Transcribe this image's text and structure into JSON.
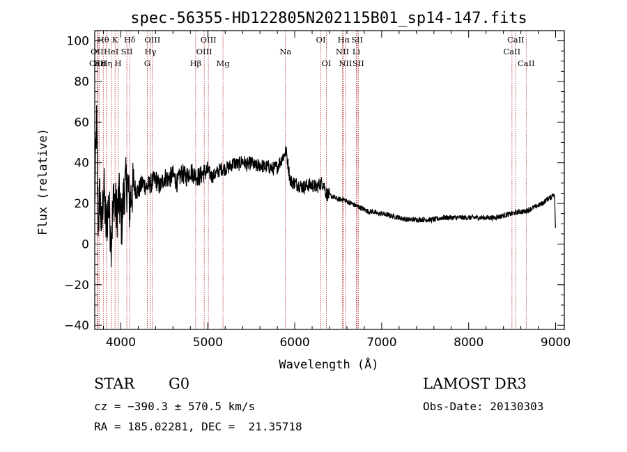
{
  "chart_data": {
    "type": "line",
    "title": "spec-56355-HD122805N202115B01_sp14-147.fits",
    "xlabel": "Wavelength (Å)",
    "ylabel": "Flux (relative)",
    "xlim": [
      3700,
      9100
    ],
    "ylim": [
      -42,
      105
    ],
    "xticks": [
      4000,
      5000,
      6000,
      7000,
      8000,
      9000
    ],
    "xtick_labels": [
      "4000",
      "5000",
      "6000",
      "7000",
      "8000",
      "9000"
    ],
    "yticks": [
      -40,
      -20,
      0,
      20,
      40,
      60,
      80,
      100
    ],
    "ytick_labels": [
      "−40",
      "−20",
      "0",
      "20",
      "40",
      "60",
      "80",
      "100"
    ],
    "grid": false,
    "series": [
      {
        "name": "spectrum",
        "x": [
          3700,
          3720,
          3740,
          3760,
          3780,
          3800,
          3830,
          3860,
          3890,
          3920,
          3950,
          3980,
          4010,
          4040,
          4080,
          4100,
          4120,
          4150,
          4200,
          4250,
          4300,
          4350,
          4400,
          4450,
          4500,
          4550,
          4600,
          4650,
          4700,
          4750,
          4800,
          4850,
          4900,
          4950,
          5000,
          5050,
          5100,
          5150,
          5200,
          5250,
          5300,
          5350,
          5400,
          5450,
          5500,
          5550,
          5600,
          5650,
          5700,
          5750,
          5800,
          5850,
          5880,
          5900,
          5920,
          5950,
          6000,
          6050,
          6100,
          6150,
          6200,
          6250,
          6300,
          6330,
          6360,
          6400,
          6450,
          6500,
          6550,
          6600,
          6650,
          6700,
          6750,
          6800,
          6850,
          6900,
          6950,
          7000,
          7100,
          7200,
          7300,
          7400,
          7500,
          7600,
          7700,
          7800,
          7900,
          8000,
          8100,
          8200,
          8300,
          8400,
          8500,
          8600,
          8650,
          8700,
          8750,
          8800,
          8850,
          8900,
          8950,
          8970,
          8990,
          9000
        ],
        "y": [
          20,
          60,
          10,
          25,
          5,
          30,
          8,
          20,
          2,
          25,
          15,
          22,
          10,
          28,
          30,
          18,
          25,
          28,
          26,
          30,
          28,
          30,
          32,
          28,
          33,
          32,
          34,
          30,
          35,
          33,
          36,
          34,
          33,
          35,
          36,
          33,
          35,
          37,
          37,
          38,
          40,
          39,
          41,
          39,
          40,
          38,
          39,
          38,
          38,
          37,
          38,
          42,
          44,
          46,
          40,
          31,
          30,
          29,
          28,
          29,
          29,
          28,
          30,
          30,
          25,
          24,
          23,
          22,
          22,
          21,
          20,
          19,
          18,
          17,
          16,
          16,
          15,
          15,
          14,
          13,
          12,
          12,
          12,
          12,
          13,
          13,
          13,
          13,
          13,
          13,
          13,
          14,
          15,
          16,
          16,
          17,
          18,
          19,
          20,
          22,
          23,
          25,
          23,
          3
        ]
      }
    ],
    "lines": [
      {
        "label": "Hθ",
        "x": 3798,
        "row": 1
      },
      {
        "label": "OII",
        "x": 3727,
        "row": 2
      },
      {
        "label": "CaII",
        "x": 3734,
        "row": 3
      },
      {
        "label": "Hε",
        "x": 3750,
        "row": 3
      },
      {
        "label": "K",
        "x": 3934,
        "row": 1
      },
      {
        "label": "HeI",
        "x": 3889,
        "row": 2
      },
      {
        "label": "Hη",
        "x": 3835,
        "row": 3
      },
      {
        "label": "SII",
        "x": 4069,
        "row": 2
      },
      {
        "label": "H",
        "x": 3969,
        "row": 3
      },
      {
        "label": "Hδ",
        "x": 4102,
        "row": 1
      },
      {
        "label": "OIII",
        "x": 4363,
        "row": 1
      },
      {
        "label": "Hγ",
        "x": 4340,
        "row": 2
      },
      {
        "label": "G",
        "x": 4304,
        "row": 3
      },
      {
        "label": "OIII",
        "x": 5007,
        "row": 1
      },
      {
        "label": "OIII",
        "x": 4959,
        "row": 2
      },
      {
        "label": "Hβ",
        "x": 4861,
        "row": 3
      },
      {
        "label": "Mg",
        "x": 5175,
        "row": 3
      },
      {
        "label": "Na",
        "x": 5893,
        "row": 2
      },
      {
        "label": "OI",
        "x": 6300,
        "row": 1
      },
      {
        "label": "OI",
        "x": 6364,
        "row": 3
      },
      {
        "label": "Hα",
        "x": 6563,
        "row": 1
      },
      {
        "label": "SII",
        "x": 6717,
        "row": 1
      },
      {
        "label": "NII",
        "x": 6548,
        "row": 2
      },
      {
        "label": "Li",
        "x": 6708,
        "row": 2
      },
      {
        "label": "NII",
        "x": 6583,
        "row": 3
      },
      {
        "label": "SII",
        "x": 6731,
        "row": 3
      },
      {
        "label": "CaII",
        "x": 8542,
        "row": 1
      },
      {
        "label": "CaII",
        "x": 8498,
        "row": 2
      },
      {
        "label": "CaII",
        "x": 8662,
        "row": 3
      }
    ]
  },
  "info": {
    "object_class": "STAR",
    "subclass": "G0",
    "survey": "LAMOST DR3",
    "cz": "cz = −390.3 ± 570.5 km/s",
    "obs_date": "Obs-Date: 20130303",
    "coords": "RA = 185.02281, DEC =  21.35718"
  },
  "colors": {
    "spectrum": "#000000",
    "line_marker": "#b22222",
    "axis": "#000000"
  }
}
